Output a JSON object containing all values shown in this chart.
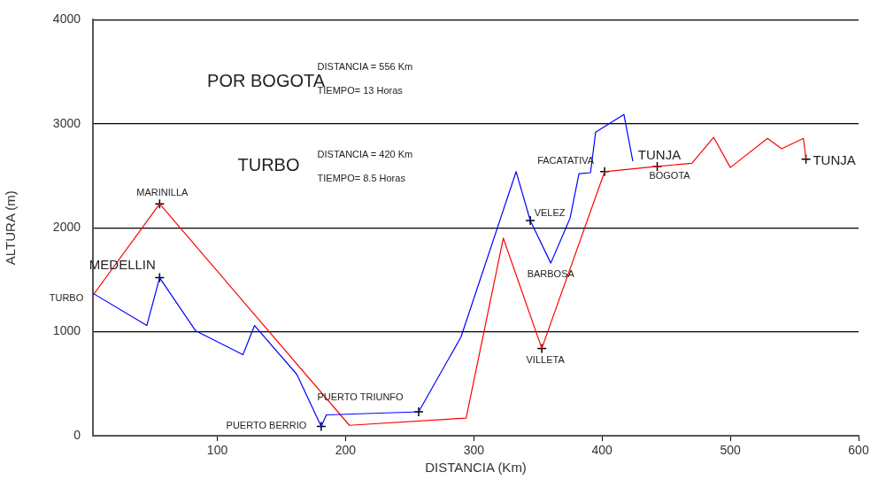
{
  "chart_data": {
    "type": "line",
    "xlabel": "DISTANCIA (Km)",
    "ylabel": "ALTURA (m)",
    "xlim": [
      3,
      600
    ],
    "xticks": [
      100,
      200,
      300,
      400,
      500,
      600
    ],
    "ylim": [
      0,
      4000
    ],
    "yticks": [
      0,
      1000,
      2000,
      3000,
      4000
    ],
    "grid": "y",
    "line_style": "solid",
    "series": [
      {
        "type": "line",
        "color": "#0000ff",
        "marker": "none",
        "x": [
          3,
          45,
          55,
          83,
          120,
          129,
          162,
          181,
          185,
          257,
          290,
          333,
          344,
          360,
          375,
          382,
          391,
          395,
          417,
          424
        ],
        "values": [
          1370,
          1060,
          1520,
          1010,
          780,
          1060,
          590,
          90,
          200,
          230,
          950,
          2540,
          2070,
          1660,
          2090,
          2520,
          2530,
          2920,
          3090,
          2640
        ]
      },
      {
        "type": "line",
        "color": "#ff0000",
        "marker": "none",
        "x": [
          3,
          55,
          203,
          294,
          323,
          353,
          402,
          443,
          470,
          487,
          500,
          529,
          540,
          557,
          559
        ],
        "values": [
          1350,
          2230,
          100,
          170,
          1900,
          840,
          2540,
          2590,
          2620,
          2870,
          2580,
          2860,
          2760,
          2860,
          2660
        ]
      },
      {
        "type": "scatter",
        "color": "#000000",
        "marker": "cross",
        "x": [
          55,
          55,
          181,
          257,
          344,
          353,
          402,
          443,
          559
        ],
        "values": [
          2230,
          1520,
          90,
          230,
          2070,
          840,
          2540,
          2590,
          2660
        ]
      }
    ],
    "annotations": [
      "POR BOGOTA",
      "DISTANCIA = 556 Km",
      "TIEMPO= 13 Horas",
      "TURBO",
      "DISTANCIA = 420 Km",
      "TIEMPO= 8.5 Horas",
      {
        "text": "MARINILLA",
        "x": 55,
        "y": 2230
      },
      {
        "text": "MEDELLIN",
        "x": 55,
        "y": 1520
      },
      {
        "text": "TURBO",
        "x": 3,
        "y": 1370
      },
      {
        "text": "PUERTO BERRIO",
        "x": 181,
        "y": 90
      },
      {
        "text": "PUERTO TRIUNFO",
        "x": 257,
        "y": 230
      },
      {
        "text": "VELEZ",
        "x": 344,
        "y": 2070
      },
      {
        "text": "BARBOSA",
        "x": 360,
        "y": 1660
      },
      {
        "text": "VILLETA",
        "x": 353,
        "y": 840
      },
      {
        "text": "FACATATIVA",
        "x": 402,
        "y": 2540
      },
      {
        "text": "BOGOTA",
        "x": 443,
        "y": 2590
      },
      {
        "text": "TUNJA",
        "x": 424,
        "y": 2640
      },
      {
        "text": "TUNJA",
        "x": 559,
        "y": 2660
      }
    ]
  }
}
